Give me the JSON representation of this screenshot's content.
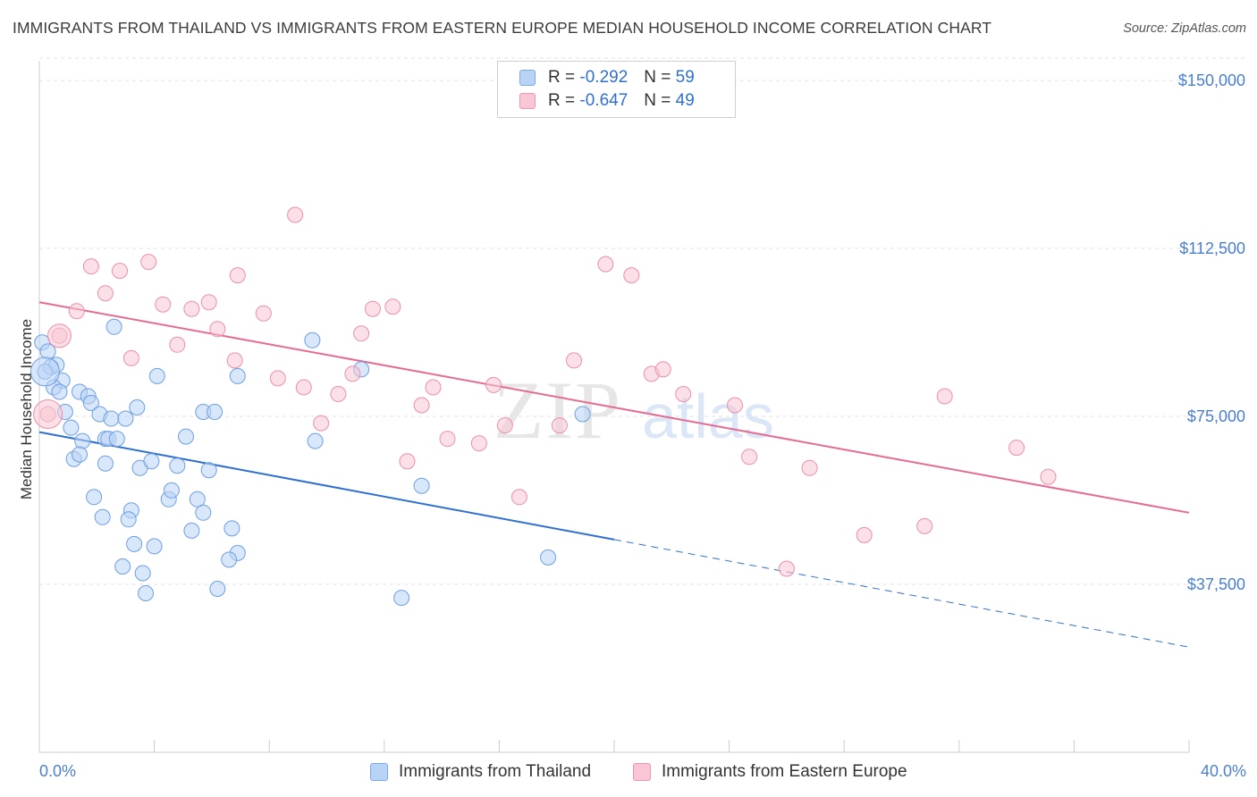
{
  "title": "IMMIGRANTS FROM THAILAND VS IMMIGRANTS FROM EASTERN EUROPE MEDIAN HOUSEHOLD INCOME CORRELATION CHART",
  "source": "Source: ZipAtlas.com",
  "watermark": {
    "zip": "ZIP",
    "atlas": "atlas"
  },
  "legend": {
    "r_label": "R =",
    "n_label": "N =",
    "rows": [
      {
        "r": "-0.292",
        "n": "59"
      },
      {
        "r": "-0.647",
        "n": "49"
      }
    ]
  },
  "colors": {
    "blue_fill": "#b9d3f6",
    "blue_line": "#2f6fd0",
    "pink_fill": "#f8c6d4",
    "pink_line": "#e56b93",
    "tick_text": "#4a7fcf"
  },
  "chart_data": {
    "type": "scatter",
    "xlabel": "",
    "ylabel": "Median Household Income",
    "xlim": [
      0,
      40
    ],
    "ylim": [
      0,
      156000
    ],
    "x_tick_labels": [
      "0.0%",
      "40.0%"
    ],
    "y_ticks": [
      37500,
      75000,
      112500,
      150000
    ],
    "y_tick_labels": [
      "$37,500",
      "$75,000",
      "$112,500",
      "$150,000"
    ],
    "grid": "horizontal dashed",
    "legend_position": "top-center",
    "series": [
      {
        "name": "Immigrants from Thailand",
        "color": "#2f6fd0",
        "points": [
          [
            0.1,
            91500
          ],
          [
            0.3,
            89500
          ],
          [
            0.4,
            86000
          ],
          [
            0.6,
            86500
          ],
          [
            0.8,
            83000
          ],
          [
            0.5,
            81500
          ],
          [
            0.7,
            80500
          ],
          [
            1.4,
            80500
          ],
          [
            1.7,
            79500
          ],
          [
            1.8,
            78000
          ],
          [
            0.9,
            76000
          ],
          [
            2.1,
            75500
          ],
          [
            2.5,
            74500
          ],
          [
            3.0,
            74500
          ],
          [
            3.4,
            77000
          ],
          [
            1.1,
            72500
          ],
          [
            1.5,
            69500
          ],
          [
            2.3,
            70000
          ],
          [
            2.4,
            70000
          ],
          [
            2.7,
            70000
          ],
          [
            1.2,
            65500
          ],
          [
            1.4,
            66500
          ],
          [
            2.3,
            64500
          ],
          [
            3.5,
            63500
          ],
          [
            3.9,
            65000
          ],
          [
            4.8,
            64000
          ],
          [
            5.9,
            63000
          ],
          [
            4.1,
            84000
          ],
          [
            5.7,
            76000
          ],
          [
            6.1,
            76000
          ],
          [
            6.9,
            84000
          ],
          [
            9.5,
            92000
          ],
          [
            11.2,
            85500
          ],
          [
            5.1,
            70500
          ],
          [
            9.6,
            69500
          ],
          [
            4.5,
            56500
          ],
          [
            4.6,
            58500
          ],
          [
            5.5,
            56500
          ],
          [
            1.9,
            57000
          ],
          [
            3.2,
            54000
          ],
          [
            3.1,
            52000
          ],
          [
            2.2,
            52500
          ],
          [
            5.7,
            53500
          ],
          [
            5.3,
            49500
          ],
          [
            6.7,
            50000
          ],
          [
            3.3,
            46500
          ],
          [
            4.0,
            46000
          ],
          [
            6.9,
            44500
          ],
          [
            6.6,
            43000
          ],
          [
            2.9,
            41500
          ],
          [
            3.6,
            40000
          ],
          [
            3.7,
            35500
          ],
          [
            6.2,
            36500
          ],
          [
            12.6,
            34500
          ],
          [
            13.3,
            59500
          ],
          [
            17.7,
            43500
          ],
          [
            18.9,
            75500
          ],
          [
            2.6,
            95000
          ],
          [
            0.2,
            85000
          ]
        ],
        "trend_solid": [
          [
            0,
            71500
          ],
          [
            20,
            47500
          ]
        ],
        "trend_dashed": [
          [
            20,
            47500
          ],
          [
            40,
            23500
          ]
        ]
      },
      {
        "name": "Immigrants from Eastern Europe",
        "color": "#e56b93",
        "points": [
          [
            0.3,
            75500
          ],
          [
            0.7,
            93000
          ],
          [
            1.3,
            98500
          ],
          [
            1.8,
            108500
          ],
          [
            2.3,
            102500
          ],
          [
            2.8,
            107500
          ],
          [
            3.2,
            88000
          ],
          [
            3.8,
            109500
          ],
          [
            4.3,
            100000
          ],
          [
            4.8,
            91000
          ],
          [
            5.3,
            99000
          ],
          [
            5.9,
            100500
          ],
          [
            6.2,
            94500
          ],
          [
            6.8,
            87500
          ],
          [
            6.9,
            106500
          ],
          [
            7.8,
            98000
          ],
          [
            8.3,
            83500
          ],
          [
            8.9,
            120000
          ],
          [
            9.2,
            81500
          ],
          [
            9.8,
            73500
          ],
          [
            10.4,
            80000
          ],
          [
            10.9,
            84500
          ],
          [
            11.2,
            93500
          ],
          [
            11.6,
            99000
          ],
          [
            12.3,
            99500
          ],
          [
            12.8,
            65000
          ],
          [
            13.3,
            77500
          ],
          [
            13.7,
            81500
          ],
          [
            14.2,
            70000
          ],
          [
            15.3,
            69000
          ],
          [
            15.8,
            82000
          ],
          [
            16.2,
            73000
          ],
          [
            16.7,
            57000
          ],
          [
            18.1,
            73000
          ],
          [
            18.6,
            87500
          ],
          [
            19.7,
            109000
          ],
          [
            20.6,
            106500
          ],
          [
            21.3,
            84500
          ],
          [
            21.7,
            85500
          ],
          [
            22.4,
            80000
          ],
          [
            24.2,
            77500
          ],
          [
            24.7,
            66000
          ],
          [
            26.8,
            63500
          ],
          [
            28.7,
            48500
          ],
          [
            30.8,
            50500
          ],
          [
            31.5,
            79500
          ],
          [
            34.0,
            68000
          ],
          [
            35.1,
            61500
          ],
          [
            26.0,
            41000
          ]
        ],
        "trend_solid": [
          [
            0,
            100500
          ],
          [
            40,
            53500
          ]
        ]
      }
    ]
  }
}
